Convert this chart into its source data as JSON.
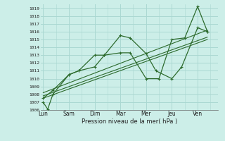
{
  "xlabel": "Pression niveau de la mer( hPa )",
  "bg_color": "#cceee8",
  "grid_color": "#aad8d2",
  "line_color": "#2d6b2d",
  "ylim": [
    1006,
    1019.5
  ],
  "yticks": [
    1006,
    1007,
    1008,
    1009,
    1010,
    1011,
    1012,
    1013,
    1014,
    1015,
    1016,
    1017,
    1018,
    1019
  ],
  "day_labels": [
    "Lun",
    "Sam",
    "Dim",
    "Mar",
    "Mer",
    "Jeu",
    "Ven"
  ],
  "day_positions": [
    0,
    1,
    2,
    3,
    4,
    5,
    6
  ],
  "xlim": [
    -0.1,
    6.8
  ],
  "line1_x": [
    0.0,
    0.18,
    0.38,
    1.0,
    1.38,
    2.0,
    2.38,
    3.0,
    3.38,
    4.0,
    4.38,
    5.0,
    5.38,
    6.0,
    6.38
  ],
  "line1_y": [
    1007.0,
    1006.1,
    1008.0,
    1010.5,
    1011.0,
    1013.0,
    1013.0,
    1015.5,
    1015.2,
    1013.2,
    1011.0,
    1010.0,
    1011.5,
    1016.5,
    1016.0
  ],
  "line2_x": [
    0.0,
    0.38,
    1.0,
    1.38,
    2.0,
    2.38,
    3.0,
    3.38,
    4.0,
    4.5,
    5.0,
    5.5,
    6.0,
    6.38
  ],
  "line2_y": [
    1007.5,
    1008.5,
    1010.5,
    1011.0,
    1011.5,
    1013.0,
    1013.3,
    1013.3,
    1010.0,
    1010.0,
    1015.0,
    1015.2,
    1019.2,
    1016.0
  ],
  "trend1_x": [
    0.0,
    6.38
  ],
  "trend1_y": [
    1007.8,
    1015.3
  ],
  "trend2_x": [
    0.0,
    6.38
  ],
  "trend2_y": [
    1008.2,
    1016.2
  ],
  "trend3_x": [
    0.0,
    6.38
  ],
  "trend3_y": [
    1007.5,
    1015.0
  ],
  "tick_fontsize": 4.5,
  "xlabel_fontsize": 6.0,
  "xtick_fontsize": 5.5
}
